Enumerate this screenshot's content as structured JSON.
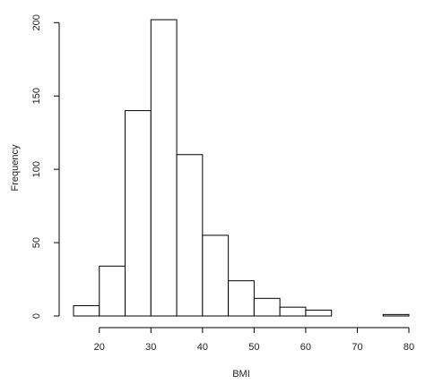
{
  "chart_data": {
    "type": "bar",
    "title": "",
    "xlabel": "BMI",
    "ylabel": "Frequency",
    "bins": [
      {
        "from": 15,
        "to": 20,
        "count": 7
      },
      {
        "from": 20,
        "to": 25,
        "count": 34
      },
      {
        "from": 25,
        "to": 30,
        "count": 140
      },
      {
        "from": 30,
        "to": 35,
        "count": 202
      },
      {
        "from": 35,
        "to": 40,
        "count": 110
      },
      {
        "from": 40,
        "to": 45,
        "count": 55
      },
      {
        "from": 45,
        "to": 50,
        "count": 24
      },
      {
        "from": 50,
        "to": 55,
        "count": 12
      },
      {
        "from": 55,
        "to": 60,
        "count": 6
      },
      {
        "from": 60,
        "to": 65,
        "count": 4
      },
      {
        "from": 65,
        "to": 70,
        "count": 0
      },
      {
        "from": 70,
        "to": 75,
        "count": 0
      },
      {
        "from": 75,
        "to": 80,
        "count": 1
      }
    ],
    "xlim": [
      15,
      80
    ],
    "ylim": [
      0,
      202
    ],
    "x_ticks": [
      "20",
      "30",
      "40",
      "50",
      "60",
      "70",
      "80"
    ],
    "y_ticks": [
      "0",
      "50",
      "100",
      "150",
      "200"
    ],
    "grid": false,
    "bar_fill": "#ffffff",
    "bar_stroke": "#000000",
    "axis_color": "#000000"
  }
}
